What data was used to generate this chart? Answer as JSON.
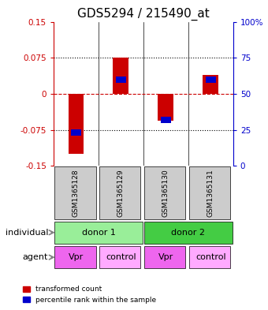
{
  "title": "GDS5294 / 215490_at",
  "categories": [
    "GSM1365128",
    "GSM1365129",
    "GSM1365130",
    "GSM1365131"
  ],
  "red_values": [
    -0.125,
    0.075,
    -0.055,
    0.04
  ],
  "blue_values_pct": [
    23,
    60,
    32,
    60
  ],
  "ylim_left": [
    -0.15,
    0.15
  ],
  "ylim_right": [
    0,
    100
  ],
  "yticks_left": [
    -0.15,
    -0.075,
    0,
    0.075,
    0.15
  ],
  "ytick_labels_left": [
    "-0.15",
    "-0.075",
    "0",
    "0.075",
    "0.15"
  ],
  "yticks_right": [
    0,
    25,
    50,
    75,
    100
  ],
  "ytick_labels_right": [
    "0",
    "25",
    "50",
    "75",
    "100%"
  ],
  "hlines_dotted": [
    -0.075,
    0.075
  ],
  "hline_dashed": 0,
  "bar_width": 0.35,
  "red_color": "#cc0000",
  "blue_color": "#0000cc",
  "bar_bg_color": "#cccccc",
  "donor1_color": "#99ee99",
  "donor2_color": "#44cc44",
  "agent_vpr_color": "#ee66ee",
  "agent_control_color": "#ffaaff",
  "agents": [
    "Vpr",
    "control",
    "Vpr",
    "control"
  ],
  "legend_red": "transformed count",
  "legend_blue": "percentile rank within the sample",
  "title_fontsize": 11,
  "tick_fontsize": 7.5,
  "label_fontsize": 8,
  "gsm_fontsize": 6.5
}
